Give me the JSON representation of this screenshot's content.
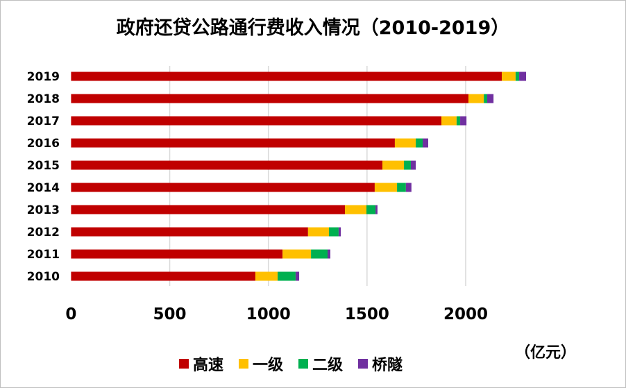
{
  "chart_data": {
    "type": "bar",
    "orientation": "horizontal",
    "stacked": true,
    "title": "政府还贷公路通行费收入情况（2010-2019）",
    "unit_label": "（亿元）",
    "categories": [
      "2019",
      "2018",
      "2017",
      "2016",
      "2015",
      "2014",
      "2013",
      "2012",
      "2011",
      "2010"
    ],
    "series": [
      {
        "name": "高速",
        "color": "#c00000",
        "values": [
          2183,
          2014,
          1877,
          1641,
          1578,
          1539,
          1388,
          1201,
          1072,
          934
        ]
      },
      {
        "name": "一级",
        "color": "#ffc000",
        "values": [
          70,
          78,
          77,
          106,
          109,
          113,
          109,
          106,
          144,
          113
        ]
      },
      {
        "name": "二级",
        "color": "#00b050",
        "values": [
          18,
          17,
          18,
          35,
          35,
          45,
          46,
          49,
          84,
          91
        ]
      },
      {
        "name": "桥隧",
        "color": "#7030a0",
        "values": [
          35,
          32,
          32,
          28,
          25,
          28,
          10,
          11,
          14,
          18
        ]
      }
    ],
    "xlim": [
      0,
      2400
    ],
    "xticks": [
      "0",
      "500",
      "1000",
      "1500",
      "2000"
    ],
    "grid": true,
    "legend": "bottom"
  }
}
